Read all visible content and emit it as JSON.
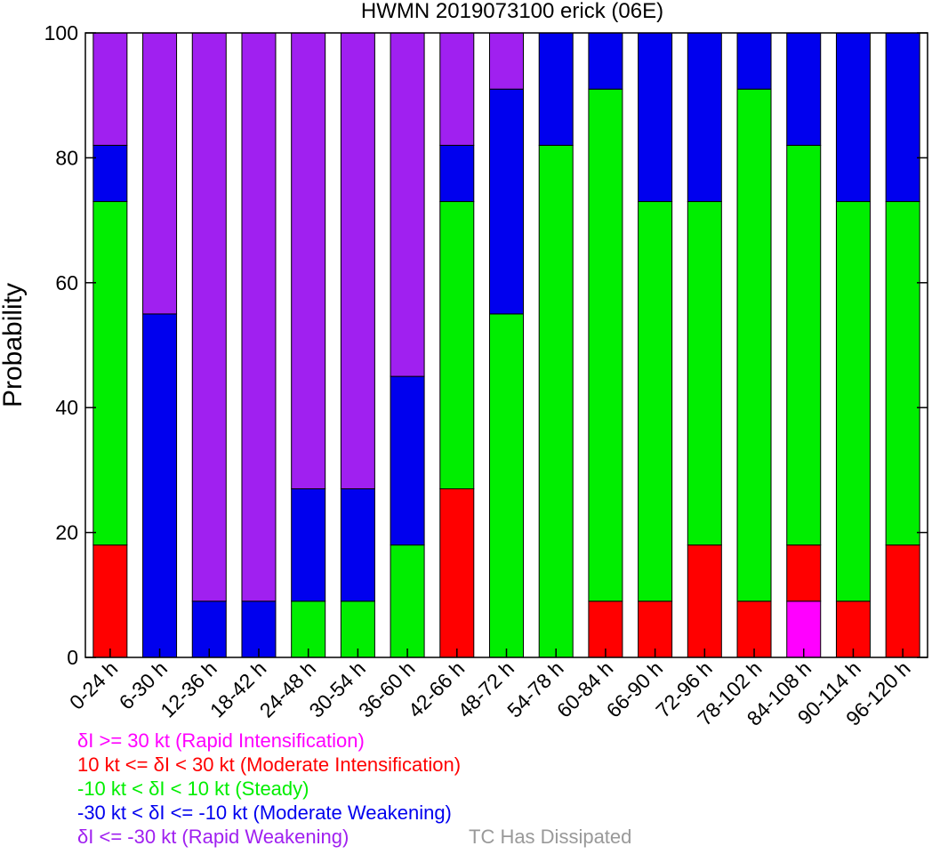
{
  "chart_data": {
    "type": "bar",
    "stacked": true,
    "title": "HWMN 2019073100 erick (06E)",
    "xlabel": "",
    "ylabel": "Probability",
    "ylim": [
      0,
      100
    ],
    "yticks": [
      "0",
      "20",
      "40",
      "60",
      "80",
      "100"
    ],
    "categories": [
      "0-24 h",
      "6-30 h",
      "12-36 h",
      "18-42 h",
      "24-48 h",
      "30-54 h",
      "36-60 h",
      "42-66 h",
      "48-72 h",
      "54-78 h",
      "60-84 h",
      "66-90 h",
      "72-96 h",
      "78-102 h",
      "84-108 h",
      "90-114 h",
      "96-120 h"
    ],
    "series": [
      {
        "name": "δI >= 30 kt (Rapid Intensification)",
        "color": "#ff00ff",
        "values": [
          0,
          0,
          0,
          0,
          0,
          0,
          0,
          0,
          0,
          0,
          0,
          0,
          0,
          0,
          9,
          0,
          0
        ]
      },
      {
        "name": "10 kt <= δI < 30 kt (Moderate Intensification)",
        "color": "#ff0000",
        "values": [
          18,
          0,
          0,
          0,
          0,
          0,
          0,
          27,
          0,
          0,
          9,
          9,
          18,
          9,
          9,
          9,
          18
        ]
      },
      {
        "name": "-10 kt < δI < 10 kt (Steady)",
        "color": "#00ee00",
        "values": [
          55,
          0,
          0,
          0,
          9,
          9,
          18,
          46,
          55,
          82,
          82,
          64,
          55,
          82,
          64,
          64,
          55
        ]
      },
      {
        "name": "-30 kt < δI <= -10 kt (Moderate Weakening)",
        "color": "#0000ee",
        "values": [
          9,
          55,
          9,
          9,
          18,
          18,
          27,
          9,
          36,
          18,
          9,
          27,
          27,
          9,
          18,
          27,
          27
        ]
      },
      {
        "name": "δI <= -30 kt (Rapid Weakening)",
        "color": "#a020f0",
        "values": [
          18,
          45,
          91,
          91,
          73,
          73,
          55,
          18,
          9,
          0,
          0,
          0,
          0,
          0,
          0,
          0,
          0
        ]
      }
    ],
    "extra_legend": {
      "name": "TC Has Dissipated",
      "color": "#999999"
    }
  },
  "legend": [
    {
      "text": "δI >= 30 kt (Rapid Intensification)",
      "color": "#ff00ff"
    },
    {
      "text": "10 kt <= δI < 30 kt (Moderate Intensification)",
      "color": "#ff0000"
    },
    {
      "text": "-10 kt < δI < 10 kt (Steady)",
      "color": "#00ee00"
    },
    {
      "text": "-30 kt < δI <= -10 kt (Moderate Weakening)",
      "color": "#0000ee"
    },
    {
      "text": "δI <= -30 kt (Rapid Weakening)",
      "color": "#a020f0"
    }
  ],
  "dissipated_label": "TC Has Dissipated",
  "dissipated_color": "#999999"
}
